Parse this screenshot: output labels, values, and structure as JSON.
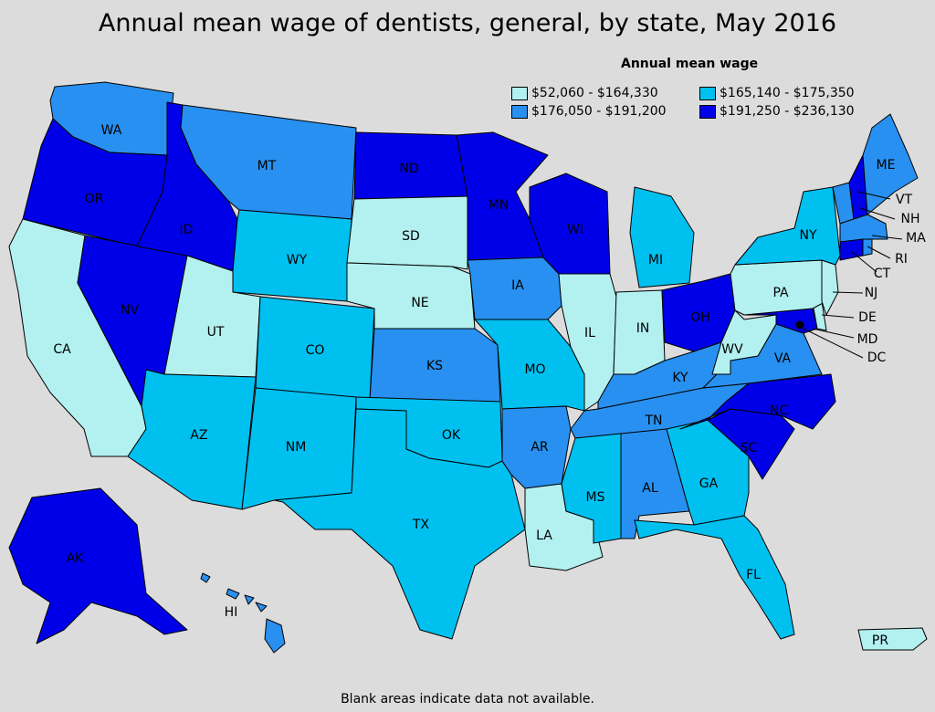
{
  "title": "Annual mean wage of dentists, general, by state, May 2016",
  "legend": {
    "title": "Annual mean wage",
    "bins": [
      {
        "label": "$52,060 - $164,330",
        "color": "#b3f0f0"
      },
      {
        "label": "$165,140 - $175,350",
        "color": "#00c0f0"
      },
      {
        "label": "$176,050 - $191,200",
        "color": "#2890f0"
      },
      {
        "label": "$191,250 - $236,130",
        "color": "#0000e8"
      }
    ]
  },
  "footnote": "Blank areas indicate data not available.",
  "states": {
    "WA": 2,
    "OR": 3,
    "CA": 0,
    "NV": 3,
    "ID": 3,
    "MT": 2,
    "WY": 1,
    "UT": 0,
    "AZ": 1,
    "CO": 1,
    "NM": 1,
    "ND": 3,
    "SD": 0,
    "NE": 0,
    "KS": 2,
    "OK": 1,
    "TX": 1,
    "MN": 3,
    "IA": 2,
    "MO": 1,
    "AR": 2,
    "LA": 0,
    "WI": 3,
    "IL": 0,
    "MI": 1,
    "IN": 0,
    "OH": 3,
    "KY": 2,
    "TN": 2,
    "MS": 1,
    "AL": 2,
    "GA": 1,
    "FL": 1,
    "SC": 3,
    "NC": 3,
    "VA": 2,
    "WV": 0,
    "PA": 0,
    "NY": 1,
    "ME": 2,
    "VT": 2,
    "NH": 3,
    "MA": 2,
    "RI": 2,
    "CT": 3,
    "NJ": 0,
    "DE": 0,
    "MD": 3,
    "DC": 3,
    "AK": 3,
    "HI": 2,
    "PR": 0
  }
}
